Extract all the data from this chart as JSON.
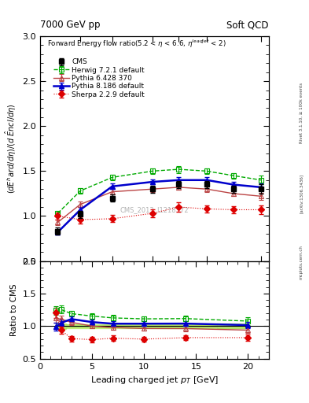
{
  "title_left": "7000 GeV pp",
  "title_right": "Soft QCD",
  "watermark": "CMS_2013_I1218372",
  "rivet_label": "Rivet 3.1.10, ≥ 100k events",
  "arxiv_label": "[arXiv:1306.3436]",
  "mcplots_label": "mcplots.cern.ch",
  "x_cms": [
    1.5,
    2.0,
    3.0,
    5.0,
    7.0,
    10.0,
    14.0,
    20.0
  ],
  "y_cms": [
    0.83,
    1.02,
    1.2,
    1.3,
    1.35,
    1.35,
    1.3,
    1.3
  ],
  "ye_cms": [
    0.04,
    0.04,
    0.04,
    0.04,
    0.04,
    0.04,
    0.04,
    0.05
  ],
  "x_herwig": [
    1.5,
    2.0,
    3.0,
    5.0,
    7.0,
    10.0,
    14.0,
    20.0
  ],
  "y_herwig": [
    1.03,
    1.28,
    1.43,
    1.5,
    1.52,
    1.5,
    1.45,
    1.4
  ],
  "ye_herwig": [
    0.03,
    0.03,
    0.03,
    0.03,
    0.04,
    0.03,
    0.03,
    0.05
  ],
  "x_p6": [
    1.5,
    2.0,
    3.0,
    5.0,
    7.0,
    10.0,
    14.0,
    20.0
  ],
  "y_p6": [
    0.93,
    1.13,
    1.27,
    1.3,
    1.32,
    1.3,
    1.25,
    1.22
  ],
  "ye_p6": [
    0.03,
    0.03,
    0.03,
    0.03,
    0.03,
    0.03,
    0.03,
    0.04
  ],
  "x_p8": [
    1.5,
    2.0,
    3.0,
    5.0,
    7.0,
    10.0,
    14.0,
    20.0
  ],
  "y_p8": [
    0.82,
    1.07,
    1.33,
    1.38,
    1.4,
    1.4,
    1.35,
    1.32
  ],
  "ye_p8": [
    0.03,
    0.03,
    0.03,
    0.03,
    0.03,
    0.03,
    0.03,
    0.04
  ],
  "x_sherpa": [
    1.5,
    2.0,
    3.0,
    5.0,
    7.0,
    10.0,
    14.0,
    20.0
  ],
  "y_sherpa": [
    1.0,
    0.96,
    0.97,
    1.03,
    1.1,
    1.08,
    1.07,
    1.07
  ],
  "ye_sherpa": [
    0.04,
    0.04,
    0.04,
    0.04,
    0.05,
    0.04,
    0.04,
    0.05
  ],
  "color_cms": "black",
  "color_herwig": "#00aa00",
  "color_p6": "#bb4444",
  "color_p8": "#0000cc",
  "color_sherpa": "#dd0000",
  "ylim_main": [
    0.5,
    3.0
  ],
  "ylim_ratio": [
    0.5,
    2.0
  ],
  "yticks_main": [
    0.5,
    1.0,
    1.5,
    2.0,
    2.5,
    3.0
  ],
  "yticks_ratio": [
    0.5,
    1.0,
    1.5,
    2.0
  ],
  "xlim_main": [
    1.2,
    22.0
  ],
  "xlim_ratio": [
    1.0,
    22.0
  ],
  "ratio_band_color": "#aaee44",
  "ratio_band_alpha": 0.5
}
